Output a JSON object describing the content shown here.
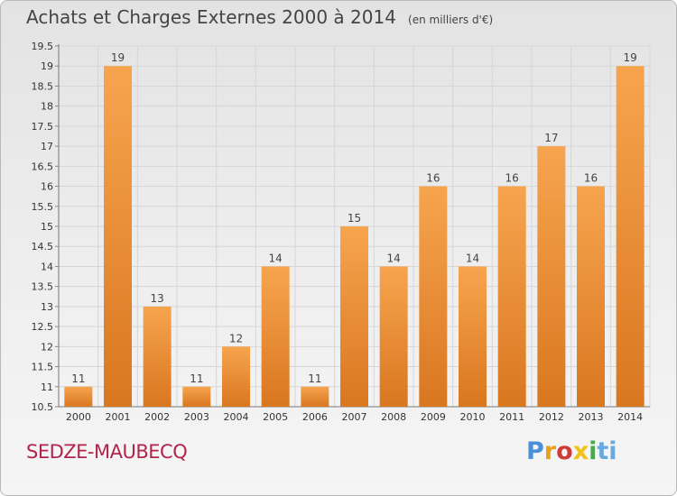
{
  "header": {
    "title": "Achats et Charges Externes 2000 à 2014",
    "units": "(en milliers d'€)"
  },
  "footer": {
    "place": "SEDZE-MAUBECQ",
    "logo": "Proxiti"
  },
  "colors": {
    "bar_light": "#f7a44f",
    "bar_dark": "#d9771f",
    "place_text": "#b2244d"
  },
  "chart_data": {
    "type": "bar",
    "title": "Achats et Charges Externes 2000 à 2014",
    "subtitle": "(en milliers d'€)",
    "categories": [
      "2000",
      "2001",
      "2002",
      "2003",
      "2004",
      "2005",
      "2006",
      "2007",
      "2008",
      "2009",
      "2010",
      "2011",
      "2012",
      "2013",
      "2014"
    ],
    "values": [
      11,
      19,
      13,
      11,
      12,
      14,
      11,
      15,
      14,
      16,
      14,
      16,
      17,
      16,
      19
    ],
    "data_labels": [
      "11",
      "19",
      "13",
      "11",
      "12",
      "14",
      "11",
      "15",
      "14",
      "16",
      "14",
      "16",
      "17",
      "16",
      "19"
    ],
    "ylim": [
      10.5,
      19.5
    ],
    "yticks": [
      "10.5",
      "11",
      "11.5",
      "12",
      "12.5",
      "13",
      "13.5",
      "14",
      "14.5",
      "15",
      "15.5",
      "16",
      "16.5",
      "17",
      "17.5",
      "18",
      "18.5",
      "19",
      "19.5"
    ],
    "grid": true
  }
}
